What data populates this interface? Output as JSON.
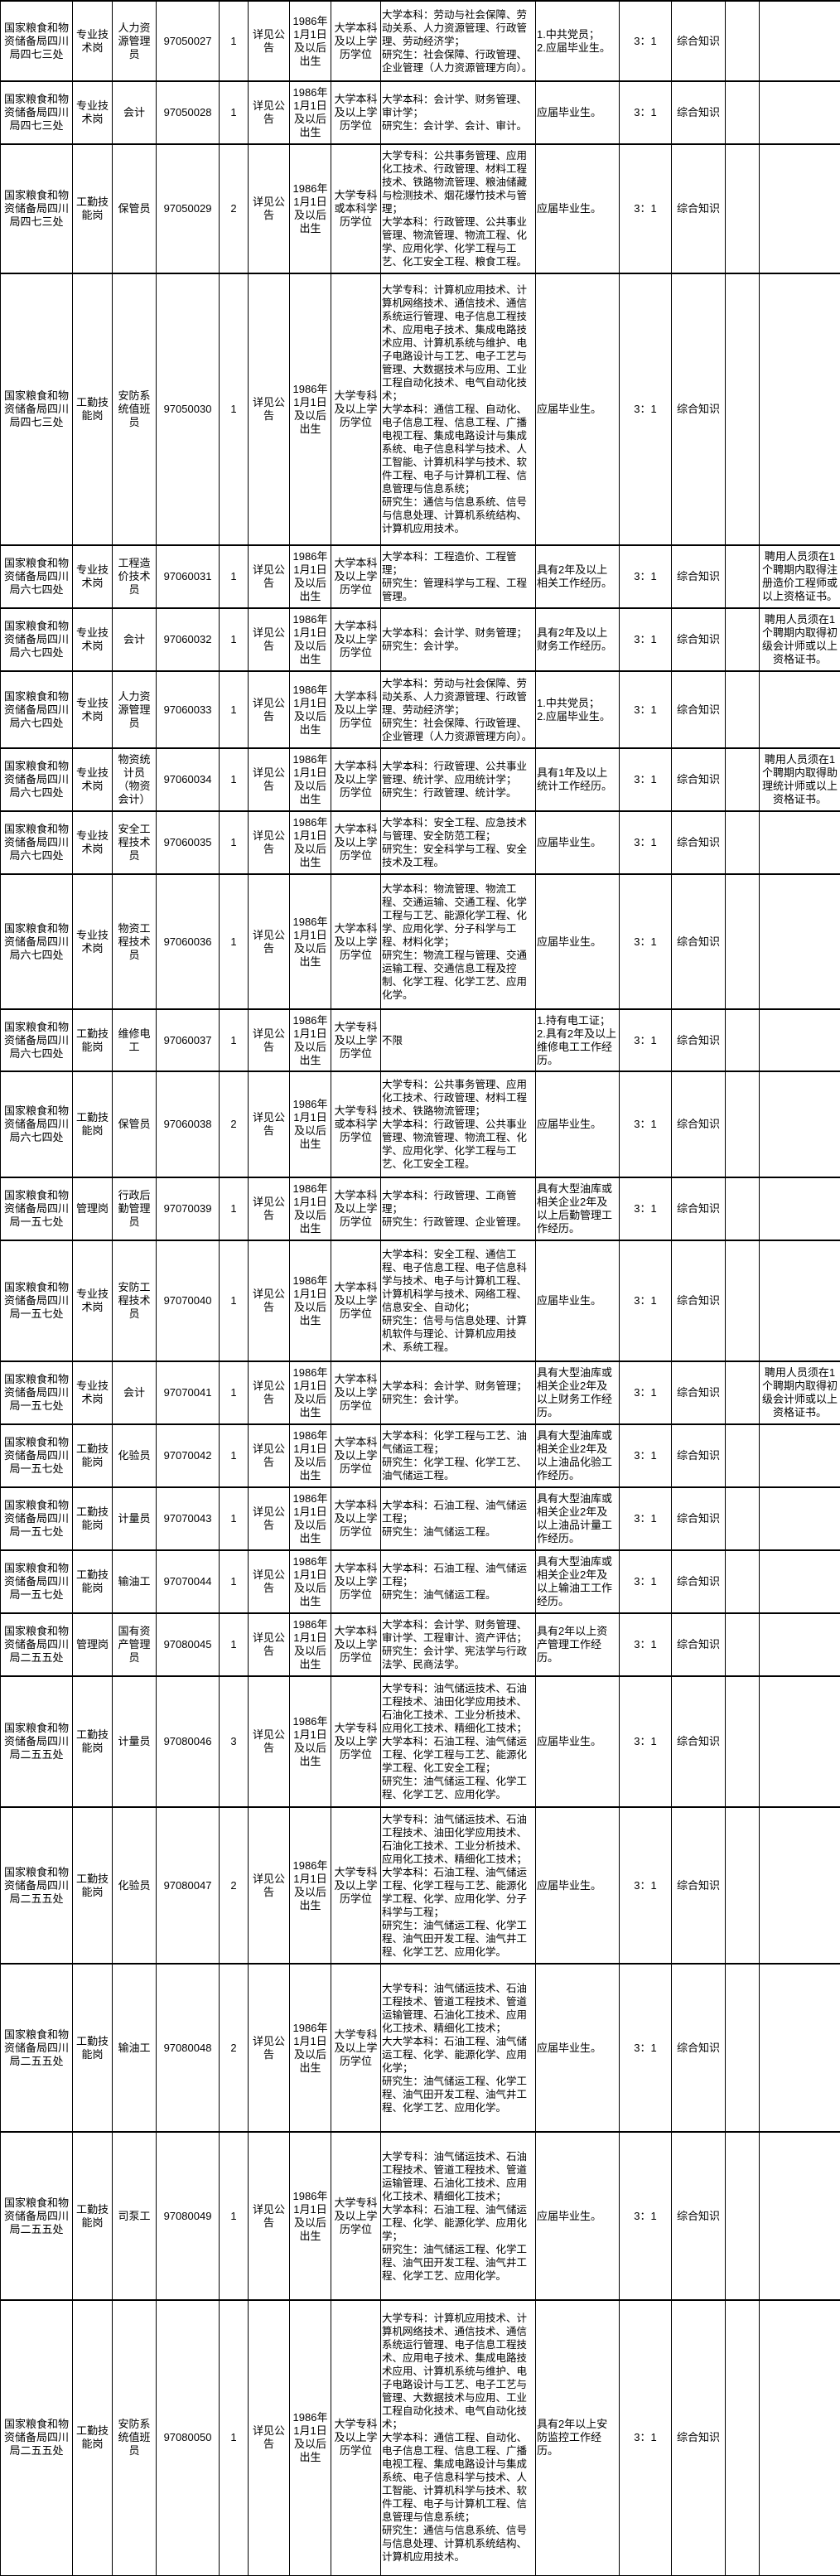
{
  "common": {
    "requirement": "详见公告",
    "birth": "1986年1月1日及以后出生",
    "ratio": "3：1",
    "exam": "综合知识"
  },
  "rows": [
    {
      "unit": "国家粮食和物资储备局四川局四七三处",
      "category": "专业技术岗",
      "position": "人力资源管理员",
      "code": "97050027",
      "count": "1",
      "education": "大学本科及以上学历学位",
      "major": "大学本科：劳动与社会保障、劳动关系、人力资源管理、行政管理、劳动经济学；\n研究生：社会保障、行政管理、企业管理（人力资源管理方向）。",
      "other": "1.中共党员；\n2.应届毕业生。",
      "note": ""
    },
    {
      "unit": "国家粮食和物资储备局四川局四七三处",
      "category": "专业技术岗",
      "position": "会计",
      "code": "97050028",
      "count": "1",
      "education": "大学本科及以上学历学位",
      "major": "大学本科：会计学、财务管理、审计学；\n研究生：会计学、会计、审计。",
      "other": "应届毕业生。",
      "note": ""
    },
    {
      "unit": "国家粮食和物资储备局四川局四七三处",
      "category": "工勤技能岗",
      "position": "保管员",
      "code": "97050029",
      "count": "2",
      "education": "大学专科或本科学历学位",
      "major": "大学专科：公共事务管理、应用化工技术、行政管理、材料工程技术、铁路物流管理、粮油储藏与检测技术、烟花爆竹技术与管理；\n大学本科：行政管理、公共事业管理、物流管理、物流工程、化学、应用化学、化学工程与工艺、化工安全工程、粮食工程。",
      "other": "应届毕业生。",
      "note": ""
    },
    {
      "unit": "国家粮食和物资储备局四川局四七三处",
      "category": "工勤技能岗",
      "position": "安防系统值班员",
      "code": "97050030",
      "count": "1",
      "education": "大学专科及以上学历学位",
      "major": "大学专科：计算机应用技术、计算机网络技术、通信技术、通信系统运行管理、电子信息工程技术、应用电子技术、集成电路技术应用、计算机系统与维护、电子电路设计与工艺、电子工艺与管理、大数据技术与应用、工业工程自动化技术、电气自动化技术；\n大学本科：通信工程、自动化、电子信息工程、信息工程、广播电视工程、集成电路设计与集成系统、电子信息科学与技术、人工智能、计算机科学与技术、软件工程、电子与计算机工程、信息管理与信息系统；\n研究生：通信与信息系统、信号与信息处理、计算机系统结构、计算机应用技术。",
      "other": "应届毕业生。",
      "note": ""
    },
    {
      "unit": "国家粮食和物资储备局四川局六七四处",
      "category": "专业技术岗",
      "position": "工程造价技术员",
      "code": "97060031",
      "count": "1",
      "education": "大学本科及以上学历学位",
      "major": "大学本科：工程造价、工程管理；\n研究生：管理科学与工程、工程管理。",
      "other": "具有2年及以上相关工作经历。",
      "note": "聘用人员须在1个聘期内取得注册造价工程师或以上资格证书。"
    },
    {
      "unit": "国家粮食和物资储备局四川局六七四处",
      "category": "专业技术岗",
      "position": "会计",
      "code": "97060032",
      "count": "1",
      "education": "大学本科及以上学历学位",
      "major": "大学本科：会计学、财务管理；\n研究生：会计学。",
      "other": "具有2年及以上财务工作经历。",
      "note": "聘用人员须在1个聘期内取得初级会计师或以上资格证书。"
    },
    {
      "unit": "国家粮食和物资储备局四川局六七四处",
      "category": "专业技术岗",
      "position": "人力资源管理员",
      "code": "97060033",
      "count": "1",
      "education": "大学本科及以上学历学位",
      "major": "大学本科：劳动与社会保障、劳动关系、人力资源管理、行政管理、劳动经济学；\n研究生：社会保障、行政管理、企业管理（人力资源管理方向）。",
      "other": "1.中共党员；\n2.应届毕业生。",
      "note": ""
    },
    {
      "unit": "国家粮食和物资储备局四川局六七四处",
      "category": "专业技术岗",
      "position": "物资统计员（物资会计）",
      "code": "97060034",
      "count": "1",
      "education": "大学本科及以上学历学位",
      "major": "大学本科：行政管理、公共事业管理、统计学、应用统计学；\n研究生：行政管理、统计学。",
      "other": "具有1年及以上统计工作经历。",
      "note": "聘用人员须在1个聘期内取得助理统计师或以上资格证书。"
    },
    {
      "unit": "国家粮食和物资储备局四川局六七四处",
      "category": "专业技术岗",
      "position": "安全工程技术员",
      "code": "97060035",
      "count": "1",
      "education": "大学本科及以上学历学位",
      "major": "大学本科：安全工程、应急技术与管理、安全防范工程；\n研究生：安全科学与工程、安全技术及工程。",
      "other": "应届毕业生。",
      "note": ""
    },
    {
      "unit": "国家粮食和物资储备局四川局六七四处",
      "category": "专业技术岗",
      "position": "物资工程技术员",
      "code": "97060036",
      "count": "1",
      "education": "大学本科及以上学历学位",
      "major": "大学本科：物流管理、物流工程、交通运输、交通工程、化学工程与工艺、能源化学工程、化学、应用化学、分子科学与工程、材料化学；\n研究生：物流工程与管理、交通运输工程、交通信息工程及控制、化学工程、化学工艺、应用化学。",
      "other": "应届毕业生。",
      "note": ""
    },
    {
      "unit": "国家粮食和物资储备局四川局六七四处",
      "category": "工勤技能岗",
      "position": "维修电工",
      "code": "97060037",
      "count": "1",
      "education": "大学专科及以上学历学位",
      "major": "不限",
      "other": "1.持有电工证；\n2.具有2年及以上维修电工工作经历。",
      "note": ""
    },
    {
      "unit": "国家粮食和物资储备局四川局六七四处",
      "category": "工勤技能岗",
      "position": "保管员",
      "code": "97060038",
      "count": "2",
      "education": "大学专科或本科学历学位",
      "major": "大学专科：公共事务管理、应用化工技术、行政管理、材料工程技术、铁路物流管理；\n大学本科：行政管理、公共事业管理、物流管理、物流工程、化学、应用化学、化学工程与工艺、化工安全工程。",
      "other": "应届毕业生。",
      "note": ""
    },
    {
      "unit": "国家粮食和物资储备局四川局一五七处",
      "category": "管理岗",
      "position": "行政后勤管理员",
      "code": "97070039",
      "count": "1",
      "education": "大学本科及以上学历学位",
      "major": "大学本科：行政管理、工商管理；\n研究生：行政管理、企业管理。",
      "other": "具有大型油库或相关企业2年及以上后勤管理工作经历。",
      "note": ""
    },
    {
      "unit": "国家粮食和物资储备局四川局一五七处",
      "category": "专业技术岗",
      "position": "安防工程技术员",
      "code": "97070040",
      "count": "1",
      "education": "大学本科及以上学历学位",
      "major": "大学本科：安全工程、通信工程、电子信息工程、电子信息科学与技术、电子与计算机工程、计算机科学与技术、网络工程、信息安全、自动化；\n研究生：信号与信息处理、计算机软件与理论、计算机应用技术、系统工程。",
      "other": "应届毕业生。",
      "note": ""
    },
    {
      "unit": "国家粮食和物资储备局四川局一五七处",
      "category": "专业技术岗",
      "position": "会计",
      "code": "97070041",
      "count": "1",
      "education": "大学本科及以上学历学位",
      "major": "大学本科：会计学、财务管理；\n研究生：会计学。",
      "other": "具有大型油库或相关企业2年及以上财务工作经历。",
      "note": "聘用人员须在1个聘期内取得初级会计师或以上资格证书。"
    },
    {
      "unit": "国家粮食和物资储备局四川局一五七处",
      "category": "工勤技能岗",
      "position": "化验员",
      "code": "97070042",
      "count": "1",
      "education": "大学本科及以上学历学位",
      "major": "大学本科：化学工程与工艺、油气储运工程；\n研究生：化学工程、化学工艺、油气储运工程。",
      "other": "具有大型油库或相关企业2年及以上油品化验工作经历。",
      "note": ""
    },
    {
      "unit": "国家粮食和物资储备局四川局一五七处",
      "category": "工勤技能岗",
      "position": "计量员",
      "code": "97070043",
      "count": "1",
      "education": "大学本科及以上学历学位",
      "major": "大学本科：石油工程、油气储运工程；\n研究生：油气储运工程。",
      "other": "具有大型油库或相关企业2年及以上油品计量工作经历。",
      "note": ""
    },
    {
      "unit": "国家粮食和物资储备局四川局一五七处",
      "category": "工勤技能岗",
      "position": "输油工",
      "code": "97070044",
      "count": "1",
      "education": "大学本科及以上学历学位",
      "major": "大学本科：石油工程、油气储运工程；\n研究生：油气储运工程。",
      "other": "具有大型油库或相关企业2年及以上输油工工作经历。",
      "note": ""
    },
    {
      "unit": "国家粮食和物资储备局四川局二五五处",
      "category": "管理岗",
      "position": "国有资产管理员",
      "code": "97080045",
      "count": "1",
      "education": "大学本科及以上学历学位",
      "major": "大学本科：会计学、财务管理、审计学、工程审计、资产评估；\n研究生：会计学、宪法学与行政法学、民商法学。",
      "other": "具有2年以上资产管理工作经历。",
      "note": ""
    },
    {
      "unit": "国家粮食和物资储备局四川局二五五处",
      "category": "工勤技能岗",
      "position": "计量员",
      "code": "97080046",
      "count": "3",
      "education": "大学专科及以上学历学位",
      "major": "大学专科：油气储运技术、石油工程技术、油田化学应用技术、石油化工技术、工业分析技术、应用化工技术、精细化工技术；\n大学本科：石油工程、油气储运工程、化学工程与工艺、能源化学工程、化工安全工程；\n研究生：油气储运工程、化学工程、化学工艺、应用化学。",
      "other": "应届毕业生。",
      "note": ""
    },
    {
      "unit": "国家粮食和物资储备局四川局二五五处",
      "category": "工勤技能岗",
      "position": "化验员",
      "code": "97080047",
      "count": "2",
      "education": "大学专科及以上学历学位",
      "major": "大学专科：油气储运技术、石油工程技术、油田化学应用技术、石油化工技术、工业分析技术、应用化工技术、精细化工技术；\n大学本科：石油工程、油气储运工程、化学工程与工艺、能源化学工程、化学、应用化学、分子科学与工程；\n研究生：油气储运工程、化学工程、油气田开发工程、油气井工程、化学工艺、应用化学。",
      "other": "应届毕业生。",
      "note": ""
    },
    {
      "unit": "国家粮食和物资储备局四川局二五五处",
      "category": "工勤技能岗",
      "position": "输油工",
      "code": "97080048",
      "count": "2",
      "education": "大学专科及以上学历学位",
      "major": "大学专科：油气储运技术、石油工程技术、管道工程技术、管道运输管理、石油化工技术、应用化工技术、精细化工技术；\n大大学本科：石油工程、油气储运工程、化学、能源化学、应用化学；\n研究生：油气储运工程、化学工程、油气田开发工程、油气井工程、化学工艺、应用化学。",
      "other": "应届毕业生。",
      "note": ""
    },
    {
      "unit": "国家粮食和物资储备局四川局二五五处",
      "category": "工勤技能岗",
      "position": "司泵工",
      "code": "97080049",
      "count": "1",
      "education": "大学专科及以上学历学位",
      "major": "大学专科：油气储运技术、石油工程技术、管道工程技术、管道运输管理、石油化工技术、应用化工技术、精细化工技术；\n大学本科：石油工程、油气储运工程、化学、能源化学、应用化学；\n研究生：油气储运工程、化学工程、油气田开发工程、油气井工程、化学工艺、应用化学。",
      "other": "应届毕业生。",
      "note": ""
    },
    {
      "unit": "国家粮食和物资储备局四川局二五五处",
      "category": "工勤技能岗",
      "position": "安防系统值班员",
      "code": "97080050",
      "count": "1",
      "education": "大学专科及以上学历学位",
      "major": "大学专科：计算机应用技术、计算机网络技术、通信技术、通信系统运行管理、电子信息工程技术、应用电子技术、集成电路技术应用、计算机系统与维护、电子电路设计与工艺、电子工艺与管理、大数据技术与应用、工业工程自动化技术、电气自动化技术；\n大学本科：通信工程、自动化、电子信息工程、信息工程、广播电视工程、集成电路设计与集成系统、电子信息科学与技术、人工智能、计算机科学与技术、软件工程、电子与计算机工程、信息管理与信息系统；\n研究生：通信与信息系统、信号与信息处理、计算机系统结构、计算机应用技术。",
      "other": "具有2年以上安防监控工作经历。",
      "note": ""
    }
  ]
}
